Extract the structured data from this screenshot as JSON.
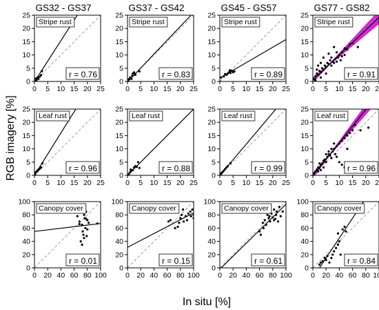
{
  "figure": {
    "ylabel": "RGB imagery [%]",
    "xlabel": "In situ [%]",
    "column_titles": [
      "GS32 - GS37",
      "GS37 - GS42",
      "GS45 - GS57",
      "GS77 - GS82"
    ],
    "row_labels": [
      "Stripe rust",
      "Leaf rust",
      "Canopy cover"
    ],
    "colors": {
      "one_to_one_line": "#999999",
      "fit_line": "#000000",
      "points": "#000000",
      "confidence_band": "#cc00cc"
    }
  },
  "chart_data": [
    {
      "type": "scatter",
      "row": "Stripe rust",
      "column": "GS32 - GS37",
      "annotation": "r = 0.76",
      "xlim": [
        0,
        25
      ],
      "ylim": [
        0,
        25
      ],
      "xticks": [
        0,
        5,
        10,
        15,
        20,
        25
      ],
      "yticks": [
        0,
        5,
        10,
        15,
        20,
        25
      ],
      "fit_line": {
        "slope": 1.55,
        "intercept": -0.1
      },
      "one_to_one": true,
      "confidence_band": false,
      "points": [
        [
          0.3,
          0.2
        ],
        [
          0.8,
          0.6
        ],
        [
          1.2,
          1.5
        ],
        [
          1.5,
          1.0
        ],
        [
          2.0,
          1.8
        ],
        [
          2.5,
          2.4
        ],
        [
          2.8,
          3.9
        ],
        [
          0.5,
          1.1
        ]
      ]
    },
    {
      "type": "scatter",
      "row": "Stripe rust",
      "column": "GS37 - GS42",
      "annotation": "r = 0.83",
      "xlim": [
        0,
        25
      ],
      "ylim": [
        0,
        25
      ],
      "xticks": [
        0,
        5,
        10,
        15,
        20,
        25
      ],
      "yticks": [
        0,
        5,
        10,
        15,
        20,
        25
      ],
      "fit_line": {
        "slope": 1.05,
        "intercept": -0.2
      },
      "one_to_one": true,
      "confidence_band": false,
      "points": [
        [
          0.5,
          0.8
        ],
        [
          1.0,
          1.5
        ],
        [
          1.8,
          2.2
        ],
        [
          2.0,
          3.0
        ],
        [
          2.5,
          3.4
        ],
        [
          3.0,
          2.5
        ],
        [
          4.5,
          3.8
        ],
        [
          1.5,
          1.0
        ],
        [
          2.8,
          2.8
        ]
      ]
    },
    {
      "type": "scatter",
      "row": "Stripe rust",
      "column": "GS45 - GS57",
      "annotation": "r = 0.89",
      "xlim": [
        0,
        25
      ],
      "ylim": [
        0,
        25
      ],
      "xticks": [
        0,
        5,
        10,
        15,
        20,
        25
      ],
      "yticks": [
        0,
        5,
        10,
        15,
        20,
        25
      ],
      "fit_line": {
        "slope": 0.58,
        "intercept": 1.3
      },
      "one_to_one": true,
      "confidence_band": false,
      "points": [
        [
          0.5,
          1.5
        ],
        [
          1.5,
          2.0
        ],
        [
          2.5,
          2.5
        ],
        [
          3.0,
          3.0
        ],
        [
          3.5,
          3.5
        ],
        [
          4.0,
          3.2
        ],
        [
          4.5,
          4.0
        ],
        [
          5.0,
          3.5
        ],
        [
          5.5,
          3.8
        ],
        [
          2.0,
          2.8
        ],
        [
          3.8,
          4.2
        ]
      ]
    },
    {
      "type": "scatter",
      "row": "Stripe rust",
      "column": "GS77 - GS82",
      "annotation": "r = 0.91",
      "xlim": [
        0,
        25
      ],
      "ylim": [
        0,
        25
      ],
      "xticks": [
        0,
        5,
        10,
        15,
        20,
        25
      ],
      "yticks": [
        0,
        5,
        10,
        15,
        20,
        25
      ],
      "fit_line": {
        "slope": 0.95,
        "intercept": 0.5
      },
      "one_to_one": true,
      "confidence_band": true,
      "points": [
        [
          0.5,
          1.0
        ],
        [
          1,
          2
        ],
        [
          1.5,
          3
        ],
        [
          2,
          2.5
        ],
        [
          2.5,
          4
        ],
        [
          3,
          3.5
        ],
        [
          3.5,
          5
        ],
        [
          4,
          4.5
        ],
        [
          4.5,
          6
        ],
        [
          5,
          5.5
        ],
        [
          5.5,
          7
        ],
        [
          6,
          6.5
        ],
        [
          6.5,
          8
        ],
        [
          7,
          6
        ],
        [
          7.5,
          7.5
        ],
        [
          8,
          7
        ],
        [
          8.5,
          8.5
        ],
        [
          9,
          7.5
        ],
        [
          9.5,
          9
        ],
        [
          10,
          10
        ],
        [
          10.5,
          8
        ],
        [
          11,
          11
        ],
        [
          12,
          12.5
        ],
        [
          13,
          12
        ],
        [
          14,
          14
        ],
        [
          15,
          14.5
        ],
        [
          6,
          10.5
        ],
        [
          8,
          13
        ],
        [
          4,
          9
        ],
        [
          3,
          7
        ],
        [
          2,
          6
        ],
        [
          1.5,
          4.5
        ],
        [
          5,
          3
        ],
        [
          7,
          9
        ],
        [
          9,
          11
        ],
        [
          11,
          9.5
        ],
        [
          17,
          13
        ],
        [
          3,
          1.5
        ],
        [
          12,
          10
        ],
        [
          1,
          0.5
        ]
      ]
    },
    {
      "type": "scatter",
      "row": "Leaf rust",
      "column": "GS32 - GS37",
      "annotation": "r = 0.96",
      "xlim": [
        0,
        25
      ],
      "ylim": [
        0,
        25
      ],
      "xticks": [
        0,
        5,
        10,
        15,
        20,
        25
      ],
      "yticks": [
        0,
        5,
        10,
        15,
        20,
        25
      ],
      "fit_line": {
        "slope": 1.6,
        "intercept": 0.0
      },
      "one_to_one": true,
      "confidence_band": false,
      "points": [
        [
          0.2,
          0.3
        ],
        [
          0.5,
          1.2
        ],
        [
          1.0,
          1.5
        ],
        [
          1.5,
          2.2
        ],
        [
          2.0,
          2.5
        ],
        [
          2.5,
          3.0
        ],
        [
          0.3,
          0.8
        ],
        [
          3.0,
          4.5
        ],
        [
          1.2,
          1.9
        ]
      ]
    },
    {
      "type": "scatter",
      "row": "Leaf rust",
      "column": "GS37 - GS42",
      "annotation": "r = 0.88",
      "xlim": [
        0,
        25
      ],
      "ylim": [
        0,
        25
      ],
      "xticks": [
        0,
        5,
        10,
        15,
        20,
        25
      ],
      "yticks": [
        0,
        5,
        10,
        15,
        20,
        25
      ],
      "fit_line": {
        "slope": 1.0,
        "intercept": 0.0
      },
      "one_to_one": true,
      "confidence_band": false,
      "points": [
        [
          0.5,
          0.5
        ],
        [
          1.0,
          1.2
        ],
        [
          1.5,
          1.8
        ],
        [
          2.0,
          2.0
        ],
        [
          2.5,
          3.0
        ],
        [
          3.0,
          3.5
        ],
        [
          3.5,
          3.2
        ],
        [
          4.0,
          5.0
        ],
        [
          4.5,
          2.8
        ],
        [
          1.2,
          2.2
        ]
      ]
    },
    {
      "type": "scatter",
      "row": "Leaf rust",
      "column": "GS45 - GS57",
      "annotation": "r = 0.99",
      "xlim": [
        0,
        25
      ],
      "ylim": [
        0,
        25
      ],
      "xticks": [
        0,
        5,
        10,
        15,
        20,
        25
      ],
      "yticks": [
        0,
        5,
        10,
        15,
        20,
        25
      ],
      "fit_line": {
        "slope": 1.18,
        "intercept": 0.0
      },
      "one_to_one": true,
      "confidence_band": false,
      "points": [
        [
          0.3,
          0.3
        ],
        [
          0.6,
          0.8
        ],
        [
          1.0,
          1.2
        ],
        [
          1.5,
          1.8
        ],
        [
          2.0,
          2.4
        ],
        [
          2.5,
          3.0
        ],
        [
          3.0,
          3.5
        ],
        [
          4.0,
          4.6
        ],
        [
          0.8,
          1.0
        ]
      ]
    },
    {
      "type": "scatter",
      "row": "Leaf rust",
      "column": "GS77 - GS82",
      "annotation": "r = 0.96",
      "xlim": [
        0,
        25
      ],
      "ylim": [
        0,
        25
      ],
      "xticks": [
        0,
        5,
        10,
        15,
        20,
        25
      ],
      "yticks": [
        0,
        5,
        10,
        15,
        20,
        25
      ],
      "fit_line": {
        "slope": 1.25,
        "intercept": -0.2
      },
      "one_to_one": true,
      "confidence_band": true,
      "points": [
        [
          0.5,
          0.8
        ],
        [
          1,
          1.5
        ],
        [
          1.5,
          2.2
        ],
        [
          2,
          3
        ],
        [
          2.5,
          2.8
        ],
        [
          3,
          4
        ],
        [
          3.5,
          4.5
        ],
        [
          4,
          5.5
        ],
        [
          4.5,
          6
        ],
        [
          5,
          5
        ],
        [
          5.5,
          7
        ],
        [
          6,
          8
        ],
        [
          6.5,
          7.5
        ],
        [
          7,
          6.5
        ],
        [
          7.5,
          9
        ],
        [
          8,
          10
        ],
        [
          8.5,
          8
        ],
        [
          9,
          11
        ],
        [
          10,
          12
        ],
        [
          11,
          13
        ],
        [
          12,
          14
        ],
        [
          13,
          15
        ],
        [
          14,
          16
        ],
        [
          15,
          17
        ],
        [
          16,
          19
        ],
        [
          10,
          5
        ],
        [
          11,
          4
        ],
        [
          12,
          3
        ],
        [
          13,
          10
        ],
        [
          8,
          12
        ],
        [
          6,
          9
        ],
        [
          4,
          3
        ],
        [
          3,
          2
        ],
        [
          2,
          1.5
        ],
        [
          18,
          17
        ],
        [
          21,
          18
        ],
        [
          9,
          7
        ],
        [
          5,
          8
        ],
        [
          7,
          10
        ],
        [
          2.5,
          4.5
        ]
      ]
    },
    {
      "type": "scatter",
      "row": "Canopy cover",
      "column": "GS32 - GS37",
      "annotation": "r = 0.01",
      "xlim": [
        0,
        100
      ],
      "ylim": [
        0,
        100
      ],
      "xticks": [
        0,
        20,
        40,
        60,
        80,
        100
      ],
      "yticks": [
        0,
        20,
        40,
        60,
        80,
        100
      ],
      "fit_line": {
        "slope": 0.12,
        "intercept": 55
      },
      "one_to_one": true,
      "confidence_band": false,
      "points": [
        [
          65,
          78
        ],
        [
          68,
          70
        ],
        [
          70,
          85
        ],
        [
          72,
          65
        ],
        [
          73,
          55
        ],
        [
          74,
          50
        ],
        [
          75,
          80
        ],
        [
          76,
          75
        ],
        [
          77,
          60
        ],
        [
          78,
          85
        ],
        [
          79,
          48
        ],
        [
          80,
          72
        ],
        [
          70,
          40
        ],
        [
          72,
          35
        ],
        [
          80,
          58
        ],
        [
          68,
          66
        ],
        [
          75,
          45
        ],
        [
          82,
          68
        ],
        [
          78,
          74
        ],
        [
          95,
          67
        ]
      ]
    },
    {
      "type": "scatter",
      "row": "Canopy cover",
      "column": "GS37 - GS42",
      "annotation": "r = 0.15",
      "xlim": [
        0,
        100
      ],
      "ylim": [
        0,
        100
      ],
      "xticks": [
        0,
        20,
        40,
        60,
        80,
        100
      ],
      "yticks": [
        0,
        20,
        40,
        60,
        80,
        100
      ],
      "fit_line": {
        "slope": 0.52,
        "intercept": 31
      },
      "one_to_one": true,
      "confidence_band": false,
      "points": [
        [
          62,
          70
        ],
        [
          65,
          72
        ],
        [
          72,
          60
        ],
        [
          75,
          85
        ],
        [
          78,
          68
        ],
        [
          80,
          75
        ],
        [
          82,
          80
        ],
        [
          85,
          70
        ],
        [
          88,
          78
        ],
        [
          90,
          72
        ],
        [
          92,
          82
        ],
        [
          95,
          85
        ],
        [
          98,
          88
        ],
        [
          100,
          80
        ],
        [
          100,
          75
        ],
        [
          76,
          62
        ],
        [
          84,
          88
        ],
        [
          96,
          78
        ]
      ]
    },
    {
      "type": "scatter",
      "row": "Canopy cover",
      "column": "GS45 - GS57",
      "annotation": "r = 0.61",
      "xlim": [
        0,
        100
      ],
      "ylim": [
        0,
        100
      ],
      "xticks": [
        0,
        20,
        40,
        60,
        80,
        100
      ],
      "yticks": [
        0,
        20,
        40,
        60,
        80,
        100
      ],
      "fit_line": {
        "slope": 0.98,
        "intercept": -2
      },
      "one_to_one": true,
      "confidence_band": false,
      "points": [
        [
          60,
          55
        ],
        [
          62,
          50
        ],
        [
          65,
          68
        ],
        [
          68,
          72
        ],
        [
          70,
          65
        ],
        [
          72,
          80
        ],
        [
          74,
          75
        ],
        [
          75,
          78
        ],
        [
          76,
          70
        ],
        [
          78,
          82
        ],
        [
          80,
          76
        ],
        [
          82,
          88
        ],
        [
          84,
          74
        ],
        [
          85,
          80
        ],
        [
          86,
          85
        ],
        [
          88,
          70
        ],
        [
          90,
          92
        ],
        [
          92,
          78
        ],
        [
          95,
          85
        ],
        [
          66,
          60
        ],
        [
          74,
          86
        ],
        [
          82,
          72
        ]
      ]
    },
    {
      "type": "scatter",
      "row": "Canopy cover",
      "column": "GS77 - GS82",
      "annotation": "r = 0.84",
      "xlim": [
        0,
        100
      ],
      "ylim": [
        0,
        100
      ],
      "xticks": [
        0,
        20,
        40,
        60,
        80,
        100
      ],
      "yticks": [
        0,
        20,
        40,
        60,
        80,
        100
      ],
      "fit_line": {
        "slope": 1.5,
        "intercept": -15
      },
      "one_to_one": true,
      "confidence_band": false,
      "points": [
        [
          10,
          5
        ],
        [
          12,
          8
        ],
        [
          15,
          10
        ],
        [
          18,
          15
        ],
        [
          20,
          12
        ],
        [
          25,
          8
        ],
        [
          30,
          20
        ],
        [
          32,
          25
        ],
        [
          35,
          30
        ],
        [
          38,
          35
        ],
        [
          40,
          40
        ],
        [
          42,
          20
        ],
        [
          45,
          58
        ],
        [
          48,
          62
        ],
        [
          38,
          52
        ],
        [
          22,
          18
        ],
        [
          28,
          15
        ],
        [
          50,
          55
        ]
      ]
    }
  ]
}
